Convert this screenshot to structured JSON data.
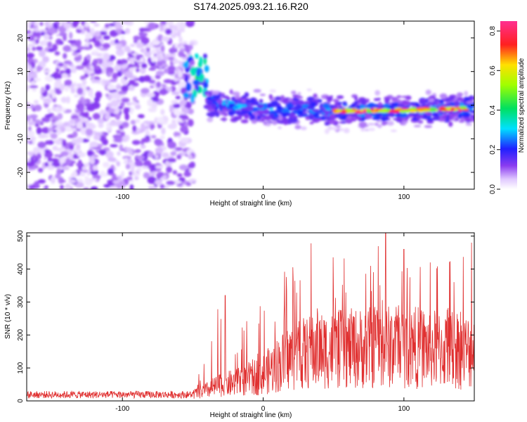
{
  "figure_title": "S174.2025.093.21.16.R20",
  "colors": {
    "snr_line": "#e03030",
    "noise_purple": "#8a3cf0",
    "axis": "#000000"
  },
  "chart_data": [
    {
      "type": "heatmap",
      "title": "S174.2025.093.21.16.R20",
      "xlabel": "Height of straight line (km)",
      "ylabel": "Frequency (Hz)",
      "xlim": [
        -168,
        150
      ],
      "ylim": [
        -25,
        25
      ],
      "xticks": [
        -100,
        0,
        100
      ],
      "xtick_labels": [
        "-100",
        "0",
        "100"
      ],
      "yticks": [
        -20,
        -10,
        0,
        10,
        20
      ],
      "ytick_labels": [
        "-20",
        "-10",
        "0",
        "10",
        "20"
      ],
      "grid": false,
      "colorbar": {
        "label": "Normalized spectral amplitude",
        "range": [
          0,
          0.85
        ],
        "ticks": [
          0.0,
          0.2,
          0.4,
          0.6,
          0.8
        ],
        "tick_labels": [
          "0.0",
          "0.2",
          "0.4",
          "0.6",
          "0.8"
        ],
        "colormap": "white-purple-blue-cyan-green-yellow-red-magenta"
      },
      "regions": [
        {
          "name": "noise",
          "x_range": [
            -168,
            -55
          ],
          "freq_range": [
            -25,
            25
          ],
          "amplitude": 0.08
        },
        {
          "name": "onset",
          "x_range": [
            -55,
            -40
          ],
          "freq_range": [
            2,
            15
          ],
          "amplitude": 0.3
        },
        {
          "name": "signal band",
          "x_range": [
            -40,
            150
          ],
          "freq_range": [
            -6,
            3
          ],
          "amplitude": 0.25
        },
        {
          "name": "strong tone",
          "x_range": [
            50,
            145
          ],
          "freq_range": [
            -2,
            0
          ],
          "amplitude": 0.8
        }
      ],
      "ridge": {
        "x": [
          -40,
          0,
          50,
          100,
          150
        ],
        "freq": [
          0.5,
          -1.0,
          -1.8,
          -1.5,
          -1.0
        ]
      }
    },
    {
      "type": "line",
      "xlabel": "Height of straight line (km)",
      "ylabel": "SNR (10 * v/v)",
      "xlim": [
        -168,
        150
      ],
      "ylim": [
        0,
        510
      ],
      "xticks": [
        -100,
        0,
        100
      ],
      "xtick_labels": [
        "-100",
        "0",
        "100"
      ],
      "yticks": [
        0,
        100,
        200,
        300,
        400,
        500
      ],
      "ytick_labels": [
        "0",
        "100",
        "200",
        "300",
        "400",
        "500"
      ],
      "grid": false,
      "envelope": {
        "x": [
          -168,
          -50,
          -40,
          -30,
          -20,
          0,
          20,
          40,
          60,
          80,
          100,
          120,
          150
        ],
        "mean": [
          22,
          22,
          35,
          55,
          60,
          90,
          150,
          170,
          175,
          180,
          185,
          175,
          165
        ],
        "max": [
          40,
          40,
          150,
          320,
          260,
          300,
          430,
          480,
          430,
          510,
          470,
          420,
          480
        ]
      },
      "peaks": [
        {
          "x": -27,
          "y": 320
        },
        {
          "x": 34,
          "y": 478
        },
        {
          "x": 87,
          "y": 510
        },
        {
          "x": 100,
          "y": 460
        },
        {
          "x": 148,
          "y": 480
        }
      ]
    }
  ]
}
